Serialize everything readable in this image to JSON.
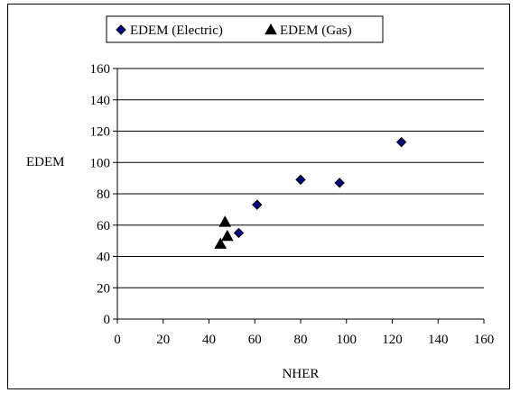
{
  "chart_data": {
    "type": "scatter",
    "title": "",
    "xlabel": "NHER",
    "ylabel": "EDEM",
    "xlim": [
      0,
      160
    ],
    "ylim": [
      0,
      160
    ],
    "xticks": [
      0,
      20,
      40,
      60,
      80,
      100,
      120,
      140,
      160
    ],
    "yticks": [
      0,
      20,
      40,
      60,
      80,
      100,
      120,
      140,
      160
    ],
    "grid": "horizontal",
    "legend_position": "top",
    "series": [
      {
        "name": "EDEM (Electric)",
        "marker": "diamond",
        "color": "#000080",
        "points": [
          {
            "x": 53,
            "y": 55
          },
          {
            "x": 61,
            "y": 73
          },
          {
            "x": 80,
            "y": 89
          },
          {
            "x": 97,
            "y": 87
          },
          {
            "x": 124,
            "y": 113
          }
        ]
      },
      {
        "name": "EDEM (Gas)",
        "marker": "triangle",
        "color": "#000000",
        "points": [
          {
            "x": 45,
            "y": 48
          },
          {
            "x": 47,
            "y": 62
          },
          {
            "x": 48,
            "y": 53
          }
        ]
      }
    ]
  }
}
